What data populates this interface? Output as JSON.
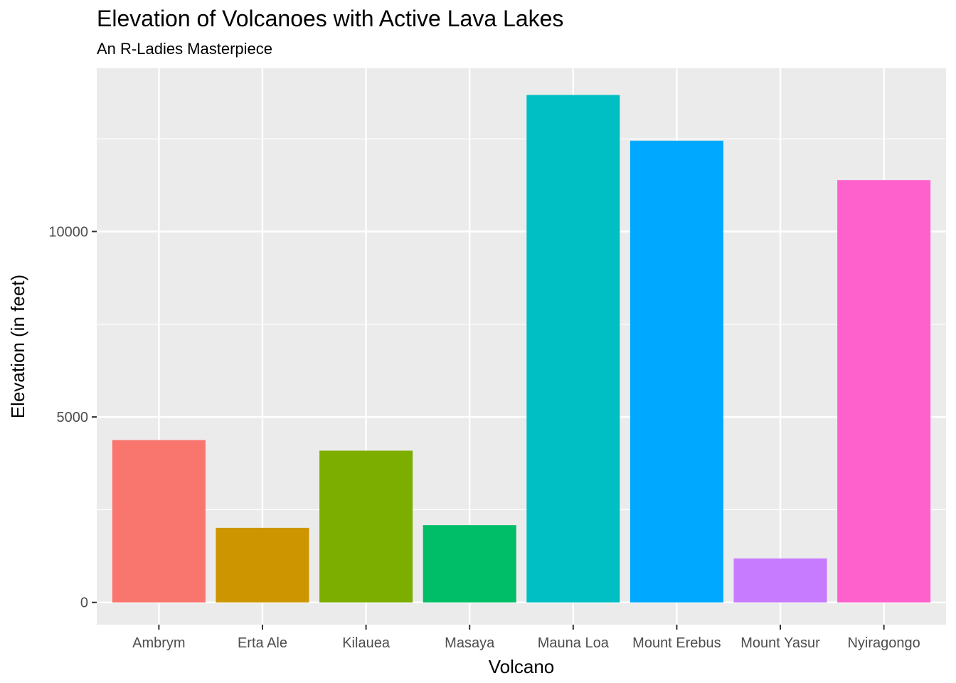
{
  "chart_data": {
    "type": "bar",
    "title": "Elevation of Volcanoes with Active Lava Lakes",
    "subtitle": "An R-Ladies Masterpiece",
    "xlabel": "Volcano",
    "ylabel": "Elevation (in feet)",
    "categories": [
      "Ambrym",
      "Erta Ale",
      "Kilauea",
      "Masaya",
      "Mauna Loa",
      "Mount Erebus",
      "Mount Yasur",
      "Nyiragongo"
    ],
    "values": [
      4377,
      2011,
      4091,
      2083,
      13681,
      12448,
      1184,
      11385
    ],
    "colors": [
      "#F8766D",
      "#CD9600",
      "#7CAE00",
      "#00BE67",
      "#00BFC4",
      "#00A9FF",
      "#C77CFF",
      "#FF61CC"
    ],
    "yticks": [
      0,
      5000,
      10000
    ],
    "ylim": [
      -600,
      14400
    ],
    "grid": true,
    "legend": "none"
  }
}
